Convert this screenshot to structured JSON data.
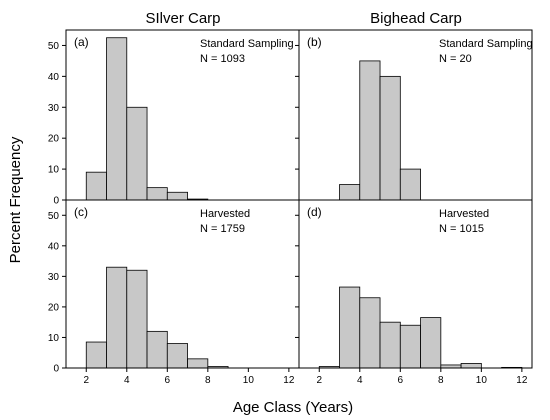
{
  "figure": {
    "column_titles": [
      "SIlver Carp",
      "Bighead Carp"
    ],
    "ylabel": "Percent Frequency",
    "xlabel": "Age Class (Years)"
  },
  "chart_data": [
    {
      "type": "bar",
      "panel_label": "(a)",
      "sampling": "Standard Sampling",
      "n_text": "N = 1093",
      "bin_width": 1,
      "x_left_edges": [
        2,
        3,
        4,
        5,
        6,
        7
      ],
      "values": [
        9,
        52.5,
        30,
        4,
        2.5,
        0.3
      ],
      "xlim": [
        1,
        12.5
      ],
      "ylim": [
        0,
        55
      ],
      "xticks": [],
      "yticks": [
        0,
        10,
        20,
        30,
        40,
        50
      ],
      "grid": false
    },
    {
      "type": "bar",
      "panel_label": "(b)",
      "sampling": "Standard Sampling",
      "n_text": "N = 20",
      "bin_width": 1,
      "x_left_edges": [
        3,
        4,
        5,
        6
      ],
      "values": [
        5,
        45,
        40,
        10
      ],
      "xlim": [
        1,
        12.5
      ],
      "ylim": [
        0,
        55
      ],
      "xticks": [],
      "yticks": [],
      "grid": false
    },
    {
      "type": "bar",
      "panel_label": "(c)",
      "sampling": "Harvested",
      "n_text": "N = 1759",
      "bin_width": 1,
      "x_left_edges": [
        2,
        3,
        4,
        5,
        6,
        7,
        8
      ],
      "values": [
        8.5,
        33,
        32,
        12,
        8,
        3,
        0.5
      ],
      "xlim": [
        1,
        12.5
      ],
      "ylim": [
        0,
        55
      ],
      "xticks": [
        2,
        4,
        6,
        8,
        10,
        12
      ],
      "yticks": [
        0,
        10,
        20,
        30,
        40,
        50
      ],
      "grid": false
    },
    {
      "type": "bar",
      "panel_label": "(d)",
      "sampling": "Harvested",
      "n_text": "N = 1015",
      "bin_width": 1,
      "x_left_edges": [
        2,
        3,
        4,
        5,
        6,
        7,
        8,
        9,
        10,
        11
      ],
      "values": [
        0.5,
        26.5,
        23,
        15,
        14,
        16.5,
        1,
        1.5,
        0,
        0.2
      ],
      "xlim": [
        1,
        12.5
      ],
      "ylim": [
        0,
        55
      ],
      "xticks": [
        2,
        4,
        6,
        8,
        10,
        12
      ],
      "yticks": [],
      "grid": false
    }
  ]
}
